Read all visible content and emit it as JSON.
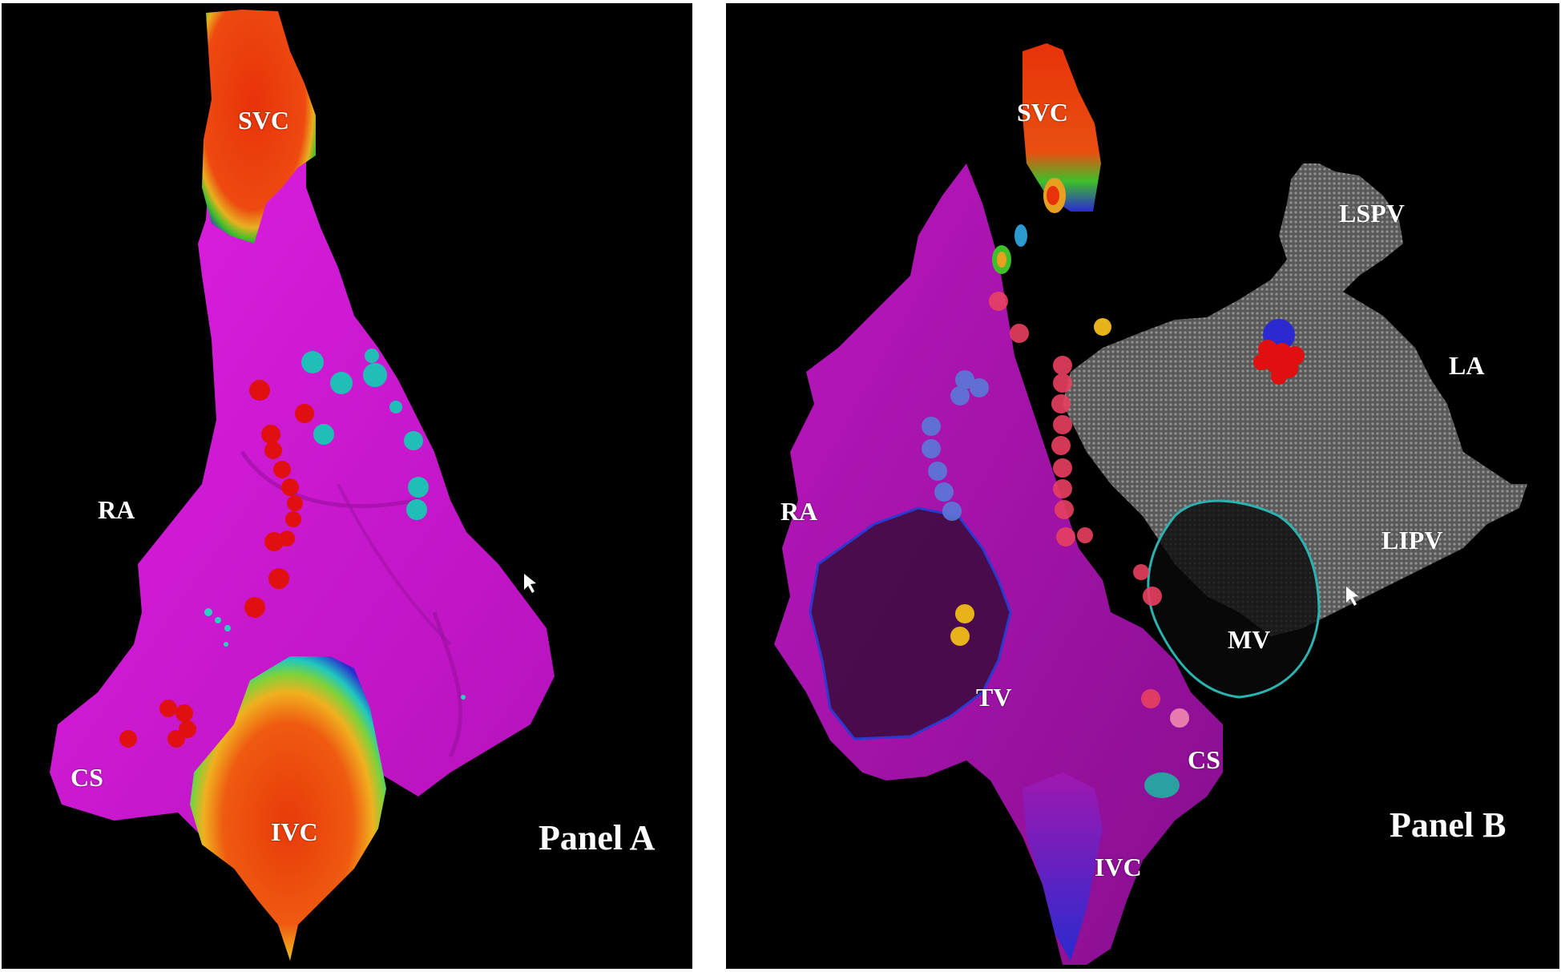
{
  "panel_a": {
    "labels": {
      "svc": "SVC",
      "ra": "RA",
      "cs": "CS",
      "ivc": "IVC",
      "panel": "Panel A"
    }
  },
  "panel_b": {
    "labels": {
      "svc": "SVC",
      "lspv": "LSPV",
      "la": "LA",
      "ra": "RA",
      "lipv": "LIPV",
      "mv": "MV",
      "tv": "TV",
      "cs": "CS",
      "ivc": "IVC",
      "panel": "Panel B"
    }
  },
  "colors": {
    "background": "#000000",
    "atrium_magenta": "#d21ad6",
    "activation_red": "#e8320a",
    "activation_green": "#3fbf2a",
    "activation_blue": "#2a2ad0",
    "ablation_point_red": "#e01010",
    "ablation_point_cyan": "#1fbfb8",
    "ablation_point_yellow": "#e8b21a",
    "la_mesh_gray": "#7a7a7a",
    "mv_outline": "#2ab3b0"
  }
}
